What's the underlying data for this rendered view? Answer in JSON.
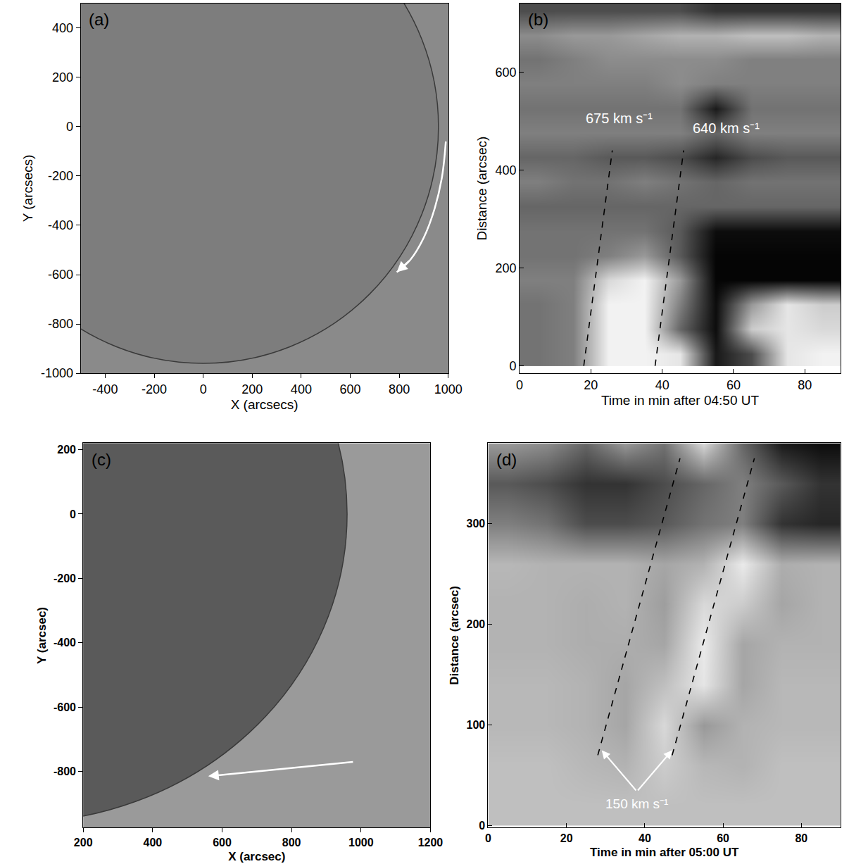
{
  "chart_data": [
    {
      "type": "image",
      "panel_label": "(a)",
      "x_label": "X (arcsecs)",
      "y_label": "Y (arcsecs)",
      "xlim": [
        -500,
        1000
      ],
      "ylim": [
        -1000,
        500
      ],
      "xticks": [
        -400,
        -200,
        0,
        200,
        400,
        600,
        800,
        1000
      ],
      "yticks": [
        -1000,
        -800,
        -600,
        -400,
        -200,
        0,
        200,
        400
      ],
      "disk_radius": 960,
      "arrow": {
        "x": [
          990,
          975,
          945,
          900,
          845,
          790
        ],
        "y": [
          -60,
          -200,
          -330,
          -450,
          -540,
          -590
        ]
      }
    },
    {
      "type": "heatmap",
      "panel_label": "(b)",
      "x_label": "Time in min after 04:50 UT",
      "y_label": "Distance (arcsec)",
      "xlim": [
        0,
        90
      ],
      "ylim": [
        -15,
        740
      ],
      "xticks": [
        0,
        20,
        40,
        60,
        80
      ],
      "yticks": [
        0,
        200,
        400,
        600
      ],
      "x_edges": [
        0,
        10,
        20,
        30,
        40,
        50,
        60,
        70,
        80,
        90
      ],
      "y_edges": [
        0,
        50,
        100,
        150,
        200,
        250,
        300,
        350,
        400,
        450,
        500,
        550,
        600,
        650,
        700,
        750
      ],
      "cells": [
        [
          0.45,
          0.5,
          0.95,
          0.95,
          0.9,
          0.1,
          0.3,
          0.9,
          0.95
        ],
        [
          0.45,
          0.5,
          0.95,
          0.95,
          0.4,
          0.05,
          0.8,
          0.9,
          0.85
        ],
        [
          0.45,
          0.5,
          0.95,
          0.95,
          0.5,
          0.05,
          0.6,
          0.9,
          0.8
        ],
        [
          0.5,
          0.5,
          0.85,
          0.95,
          0.6,
          0.02,
          0.02,
          0.02,
          0.02
        ],
        [
          0.45,
          0.45,
          0.5,
          0.6,
          0.35,
          0.02,
          0.02,
          0.02,
          0.02
        ],
        [
          0.45,
          0.45,
          0.45,
          0.45,
          0.35,
          0.05,
          0.05,
          0.05,
          0.05
        ],
        [
          0.4,
          0.4,
          0.4,
          0.4,
          0.4,
          0.4,
          0.4,
          0.4,
          0.4
        ],
        [
          0.5,
          0.45,
          0.45,
          0.5,
          0.45,
          0.4,
          0.45,
          0.45,
          0.45
        ],
        [
          0.4,
          0.4,
          0.35,
          0.35,
          0.3,
          0.15,
          0.3,
          0.35,
          0.35
        ],
        [
          0.5,
          0.5,
          0.5,
          0.5,
          0.5,
          0.4,
          0.5,
          0.5,
          0.5
        ],
        [
          0.45,
          0.45,
          0.45,
          0.45,
          0.45,
          0.1,
          0.45,
          0.45,
          0.45
        ],
        [
          0.5,
          0.5,
          0.5,
          0.5,
          0.55,
          0.5,
          0.5,
          0.5,
          0.5
        ],
        [
          0.45,
          0.5,
          0.55,
          0.55,
          0.55,
          0.55,
          0.5,
          0.5,
          0.5
        ],
        [
          0.55,
          0.6,
          0.6,
          0.65,
          0.7,
          0.7,
          0.75,
          0.75,
          0.7
        ],
        [
          0.3,
          0.3,
          0.3,
          0.3,
          0.3,
          0.2,
          0.2,
          0.2,
          0.2
        ]
      ],
      "fits": [
        {
          "x": [
            18,
            26
          ],
          "y": [
            0,
            440
          ],
          "label": "675 km s⁻¹",
          "label_x": 28,
          "label_y": 505
        },
        {
          "x": [
            38,
            46
          ],
          "y": [
            0,
            440
          ],
          "label": "640 km s⁻¹",
          "label_x": 58,
          "label_y": 485
        }
      ]
    },
    {
      "type": "image",
      "panel_label": "(c)",
      "x_label": "X (arcsec)",
      "y_label": "Y (arcsec)",
      "xlim": [
        200,
        1200
      ],
      "ylim": [
        -975,
        220
      ],
      "xticks": [
        200,
        400,
        600,
        800,
        1000,
        1200
      ],
      "yticks": [
        -800,
        -600,
        -400,
        -200,
        0,
        200
      ],
      "disk_radius": 960,
      "arrow": {
        "x": [
          980,
          560
        ],
        "y": [
          -770,
          -815
        ]
      }
    },
    {
      "type": "heatmap",
      "panel_label": "(d)",
      "x_label": "Time in min after 05:00 UT",
      "y_label": "Distance (arcsec)",
      "xlim": [
        0,
        90
      ],
      "ylim": [
        -2,
        380
      ],
      "xticks": [
        0,
        20,
        40,
        60,
        80
      ],
      "yticks": [
        0,
        100,
        200,
        300
      ],
      "x_edges": [
        0,
        10,
        20,
        30,
        40,
        50,
        60,
        70,
        80,
        90
      ],
      "y_edges": [
        0,
        40,
        80,
        120,
        160,
        200,
        240,
        280,
        320,
        360,
        400
      ],
      "cells": [
        [
          0.75,
          0.75,
          0.75,
          0.75,
          0.75,
          0.75,
          0.75,
          0.75,
          0.75
        ],
        [
          0.75,
          0.75,
          0.72,
          0.7,
          0.8,
          0.72,
          0.7,
          0.75,
          0.75
        ],
        [
          0.72,
          0.72,
          0.7,
          0.65,
          0.85,
          0.6,
          0.7,
          0.72,
          0.72
        ],
        [
          0.72,
          0.72,
          0.7,
          0.65,
          0.75,
          0.9,
          0.65,
          0.72,
          0.72
        ],
        [
          0.7,
          0.7,
          0.68,
          0.68,
          0.65,
          0.92,
          0.65,
          0.7,
          0.7
        ],
        [
          0.7,
          0.7,
          0.68,
          0.7,
          0.62,
          0.85,
          0.8,
          0.65,
          0.7
        ],
        [
          0.72,
          0.7,
          0.7,
          0.7,
          0.65,
          0.7,
          0.92,
          0.68,
          0.7
        ],
        [
          0.5,
          0.45,
          0.3,
          0.3,
          0.35,
          0.45,
          0.5,
          0.2,
          0.15
        ],
        [
          0.35,
          0.3,
          0.2,
          0.2,
          0.3,
          0.4,
          0.5,
          0.35,
          0.2
        ],
        [
          0.6,
          0.55,
          0.4,
          0.6,
          0.45,
          0.85,
          0.4,
          0.1,
          0.05
        ]
      ],
      "fits": [
        {
          "x": [
            28,
            49
          ],
          "y": [
            70,
            365
          ]
        },
        {
          "x": [
            47,
            68
          ],
          "y": [
            70,
            365
          ]
        }
      ],
      "annotations": [
        {
          "text": "150 km s⁻¹",
          "x": 38,
          "y": 22,
          "arrows_to": [
            [
              29,
              75
            ],
            [
              47,
              75
            ]
          ]
        }
      ]
    }
  ]
}
